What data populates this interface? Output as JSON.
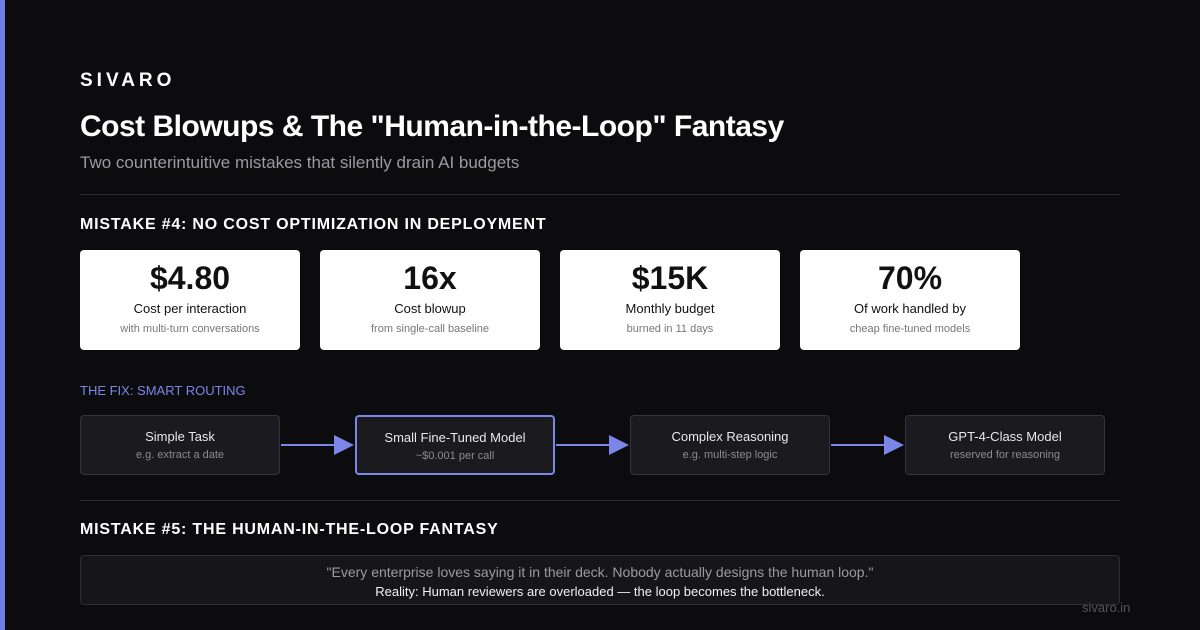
{
  "brand": "SIVARO",
  "title": "Cost Blowups & The \"Human-in-the-Loop\" Fantasy",
  "subtitle": "Two counterintuitive mistakes that silently drain AI budgets",
  "section1": {
    "heading": "MISTAKE #4: NO COST OPTIMIZATION IN DEPLOYMENT",
    "stats": [
      {
        "value": "$4.80",
        "label": "Cost per interaction",
        "note": "with multi-turn conversations"
      },
      {
        "value": "16x",
        "label": "Cost blowup",
        "note": "from single-call baseline"
      },
      {
        "value": "$15K",
        "label": "Monthly budget",
        "note": "burned in 11 days"
      },
      {
        "value": "70%",
        "label": "Of work handled by",
        "note": "cheap fine-tuned models"
      }
    ],
    "fix_heading": "THE FIX: SMART ROUTING",
    "flow": [
      {
        "title": "Simple Task",
        "sub": "e.g. extract a date"
      },
      {
        "title": "Small Fine-Tuned Model",
        "sub": "~$0.001 per call"
      },
      {
        "title": "Complex Reasoning",
        "sub": "e.g. multi-step logic"
      },
      {
        "title": "GPT-4-Class Model",
        "sub": "reserved for reasoning"
      }
    ]
  },
  "section2": {
    "heading": "MISTAKE #5: THE HUMAN-IN-THE-LOOP FANTASY",
    "quote": "\"Every enterprise loves saying it in their deck. Nobody actually designs the human loop.\"",
    "reality": "Reality: Human reviewers are overloaded — the loop becomes the bottleneck."
  },
  "footer": "sivaro.in"
}
